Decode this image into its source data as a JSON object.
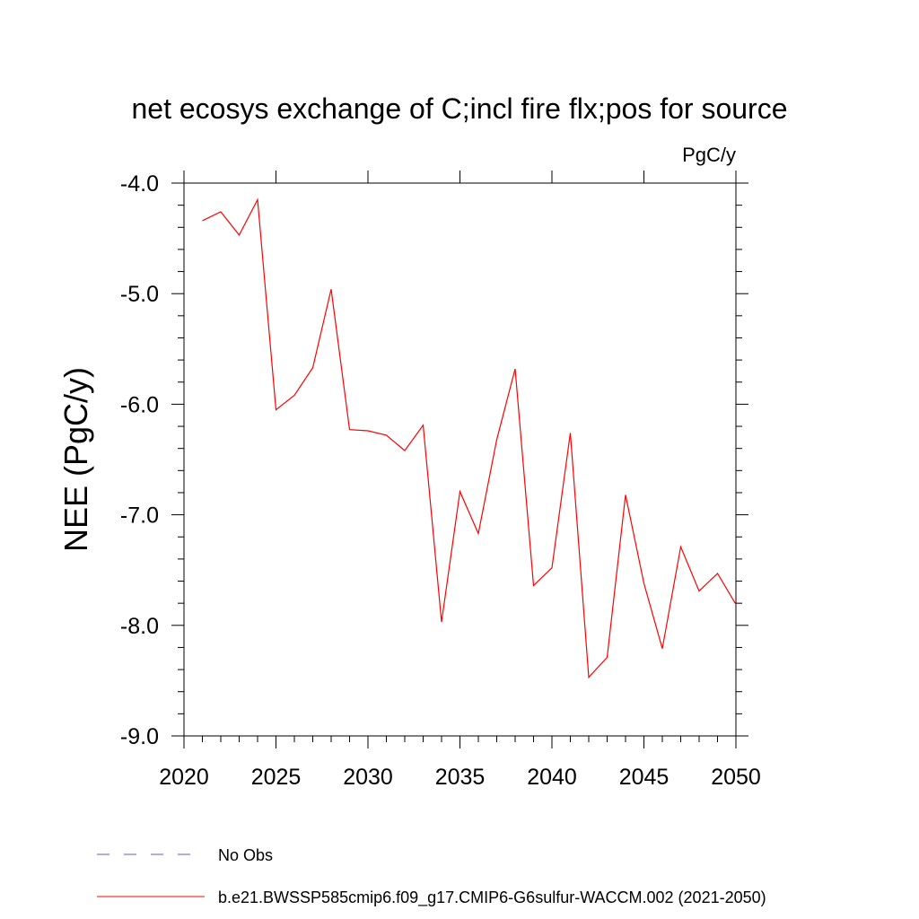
{
  "chart_data": {
    "type": "line",
    "title": "net ecosys exchange of C;incl fire flx;pos for source",
    "units": "PgC/y",
    "ylabel": "NEE  (PgC/y)",
    "xlabel": "",
    "xlim": [
      2020,
      2050
    ],
    "ylim": [
      -9.0,
      -4.0
    ],
    "x_ticks": [
      2020,
      2025,
      2030,
      2035,
      2040,
      2045,
      2050
    ],
    "x_tick_labels": [
      "2020",
      "2025",
      "2030",
      "2035",
      "2040",
      "2045",
      "2050"
    ],
    "y_ticks": [
      -4.0,
      -5.0,
      -6.0,
      -7.0,
      -8.0,
      -9.0
    ],
    "y_tick_labels": [
      "-4.0",
      "-5.0",
      "-6.0",
      "-7.0",
      "-8.0",
      "-9.0"
    ],
    "grid": false,
    "legend_position": "bottom",
    "legend": [
      {
        "label": "No Obs",
        "style": "dashed",
        "color": "#6a5acd"
      },
      {
        "label": "b.e21.BWSSP585cmip6.f09_g17.CMIP6-G6sulfur-WACCM.002 (2021-2050)",
        "style": "solid",
        "color": "#ff0000"
      }
    ],
    "series": [
      {
        "color": "#ff0000",
        "x": [
          2021,
          2022,
          2023,
          2024,
          2025,
          2026,
          2027,
          2028,
          2029,
          2030,
          2031,
          2032,
          2033,
          2034,
          2035,
          2036,
          2037,
          2038,
          2039,
          2040,
          2041,
          2042,
          2043,
          2044,
          2045,
          2046,
          2047,
          2048,
          2049,
          2050
        ],
        "y": [
          -4.34,
          -4.26,
          -4.47,
          -4.15,
          -6.05,
          -5.92,
          -5.67,
          -4.96,
          -6.23,
          -6.24,
          -6.28,
          -6.42,
          -6.19,
          -7.97,
          -6.79,
          -7.17,
          -6.32,
          -5.68,
          -7.64,
          -7.48,
          -6.26,
          -8.47,
          -8.29,
          -6.82,
          -7.62,
          -8.21,
          -7.29,
          -7.69,
          -7.53,
          -7.81
        ]
      }
    ]
  }
}
